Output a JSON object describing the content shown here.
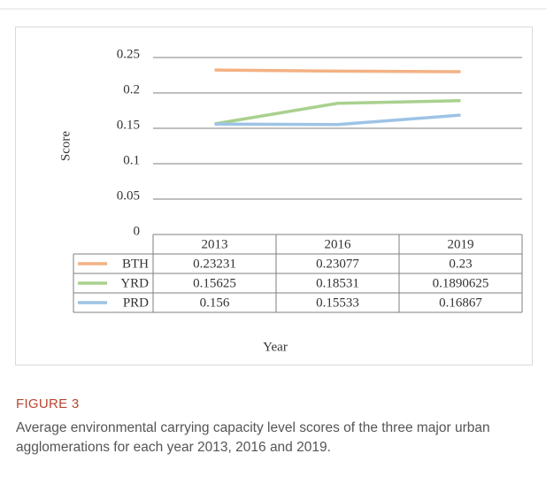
{
  "chart_data": {
    "type": "line",
    "y_label": "Score",
    "x_label": "Year",
    "categories": [
      "2013",
      "2016",
      "2019"
    ],
    "series": [
      {
        "name": "BTH",
        "color": "#f4b183",
        "values": [
          0.23231,
          0.23077,
          0.23
        ]
      },
      {
        "name": "YRD",
        "color": "#a9d18e",
        "values": [
          0.15625,
          0.18531,
          0.1890625
        ]
      },
      {
        "name": "PRD",
        "color": "#9dc3e6",
        "values": [
          0.156,
          0.15533,
          0.16867
        ]
      }
    ],
    "ylim": [
      0,
      0.25
    ],
    "yticks": [
      0,
      0.05,
      0.1,
      0.15,
      0.2,
      0.25
    ],
    "grid": true,
    "data_table": true
  },
  "figure": {
    "label": "FIGURE 3",
    "caption": "Average environmental carrying capacity level scores of the three major urban agglomerations for each year 2013, 2016 and 2019."
  }
}
